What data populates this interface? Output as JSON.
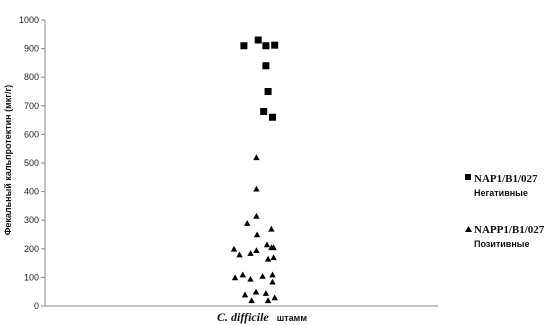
{
  "chart_data": {
    "type": "scatter",
    "ylabel": "Фекальный кальпротектин (мкг/г)",
    "xlabel_italic": "C. difficile",
    "xlabel_plain": "штамм",
    "ylim": [
      0,
      1000
    ],
    "y_ticks": [
      "0",
      "100",
      "200",
      "300",
      "400",
      "500",
      "600",
      "700",
      "800",
      "900",
      "1000"
    ],
    "grid": false,
    "legend_position": "right",
    "series": [
      {
        "name": "NAP1/B1/027",
        "subtitle": "Негативные",
        "marker": "square",
        "color": "#000000",
        "x": [
          -0.55,
          0.1,
          0.45,
          0.45,
          0.55,
          0.35,
          0.75,
          0.85
        ],
        "y": [
          910,
          930,
          910,
          840,
          750,
          680,
          660,
          912
        ]
      },
      {
        "name": "NAPP1/B1/027",
        "subtitle": "Позитивные",
        "marker": "triangle",
        "color": "#000000",
        "x": [
          0.02,
          0.02,
          -0.4,
          0.02,
          0.7,
          0.7,
          -1.0,
          -0.25,
          0.05,
          0.5,
          0.8,
          0.8,
          -0.75,
          0.02,
          0.55,
          0.75,
          -0.95,
          -0.6,
          -0.25,
          0.3,
          0.75,
          -0.5,
          0.0,
          0.45,
          0.85,
          -0.2,
          0.55
        ],
        "y": [
          520,
          410,
          290,
          315,
          270,
          205,
          200,
          185,
          250,
          215,
          205,
          170,
          180,
          195,
          165,
          110,
          100,
          110,
          95,
          105,
          85,
          40,
          50,
          45,
          30,
          20,
          20
        ]
      }
    ]
  }
}
